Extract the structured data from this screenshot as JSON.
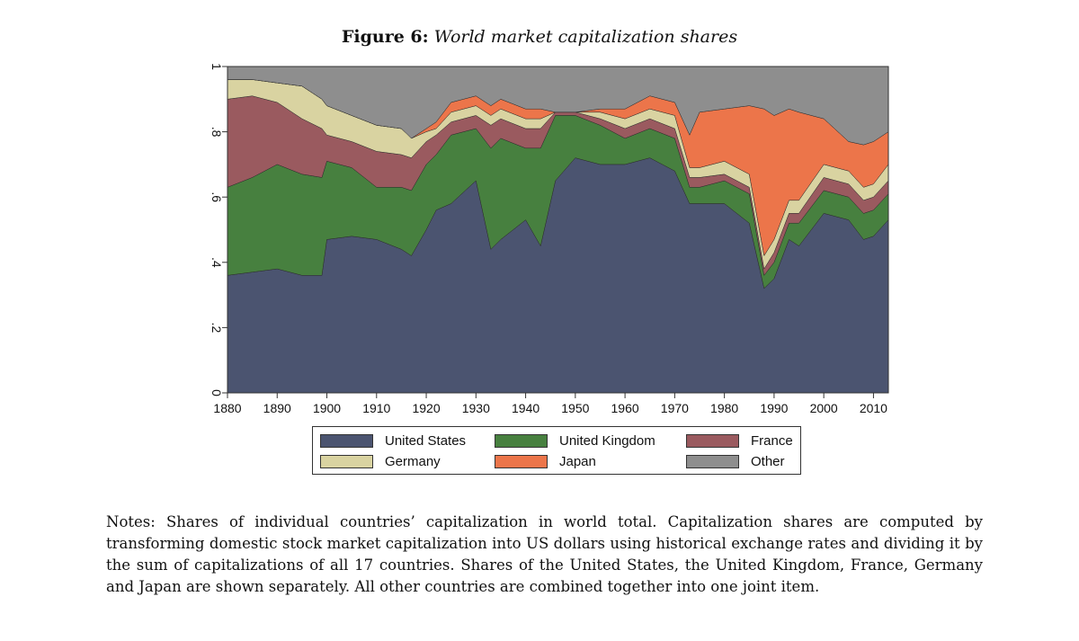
{
  "figure": {
    "label": "Figure 6:",
    "title": "World market capitalization shares"
  },
  "notes": "Notes: Shares of individual countries’ capitalization in world total. Capitalization shares are computed by transforming domestic stock market capitalization into US dollars using historical exchange rates and dividing it by the sum of capitalizations of all 17 countries. Shares of the United States, the United Kingdom, France, Germany and Japan are shown separately. All other countries are combined together into one joint item.",
  "chart_data": {
    "type": "area",
    "stacked": true,
    "xlim": [
      1880,
      2013
    ],
    "ylim": [
      0,
      1
    ],
    "x_ticks": [
      1880,
      1890,
      1900,
      1910,
      1920,
      1930,
      1940,
      1950,
      1960,
      1970,
      1980,
      1990,
      2000,
      2010
    ],
    "y_ticks": [
      {
        "value": 0,
        "label": "0"
      },
      {
        "value": 0.2,
        "label": ".2"
      },
      {
        "value": 0.4,
        "label": ".4"
      },
      {
        "value": 0.6,
        "label": ".6"
      },
      {
        "value": 0.8,
        "label": ".8"
      },
      {
        "value": 1,
        "label": "1"
      }
    ],
    "y_tick_orientation": "vertical",
    "grid": false,
    "legend_position": "bottom",
    "legend_columns": 3,
    "x": [
      1880,
      1885,
      1890,
      1895,
      1899,
      1900,
      1905,
      1910,
      1915,
      1917,
      1920,
      1922,
      1925,
      1930,
      1933,
      1935,
      1940,
      1943,
      1946,
      1950,
      1955,
      1960,
      1965,
      1970,
      1973,
      1975,
      1980,
      1985,
      1988,
      1990,
      1993,
      1995,
      2000,
      2005,
      2008,
      2010,
      2013
    ],
    "series": [
      {
        "name": "United States",
        "color": "#4b5470",
        "values": [
          0.36,
          0.37,
          0.38,
          0.36,
          0.36,
          0.47,
          0.48,
          0.47,
          0.44,
          0.42,
          0.5,
          0.56,
          0.58,
          0.65,
          0.44,
          0.47,
          0.53,
          0.45,
          0.65,
          0.72,
          0.7,
          0.7,
          0.72,
          0.68,
          0.58,
          0.58,
          0.58,
          0.52,
          0.32,
          0.35,
          0.47,
          0.45,
          0.55,
          0.53,
          0.47,
          0.48,
          0.53
        ]
      },
      {
        "name": "United Kingdom",
        "color": "#47803f",
        "values": [
          0.27,
          0.29,
          0.32,
          0.31,
          0.3,
          0.24,
          0.21,
          0.16,
          0.19,
          0.2,
          0.2,
          0.17,
          0.21,
          0.16,
          0.31,
          0.31,
          0.22,
          0.3,
          0.2,
          0.13,
          0.12,
          0.08,
          0.09,
          0.1,
          0.05,
          0.05,
          0.07,
          0.09,
          0.04,
          0.05,
          0.05,
          0.07,
          0.07,
          0.07,
          0.08,
          0.08,
          0.08
        ]
      },
      {
        "name": "France",
        "color": "#9a5a5f",
        "values": [
          0.27,
          0.25,
          0.19,
          0.17,
          0.15,
          0.08,
          0.08,
          0.11,
          0.1,
          0.1,
          0.07,
          0.06,
          0.04,
          0.04,
          0.07,
          0.06,
          0.06,
          0.06,
          0.01,
          0.01,
          0.02,
          0.03,
          0.03,
          0.03,
          0.03,
          0.03,
          0.02,
          0.02,
          0.02,
          0.03,
          0.03,
          0.03,
          0.04,
          0.04,
          0.04,
          0.04,
          0.04
        ]
      },
      {
        "name": "Germany",
        "color": "#d9d3a1",
        "values": [
          0.06,
          0.05,
          0.06,
          0.1,
          0.09,
          0.09,
          0.08,
          0.08,
          0.08,
          0.06,
          0.03,
          0.02,
          0.03,
          0.03,
          0.03,
          0.03,
          0.03,
          0.03,
          0.0,
          0.0,
          0.02,
          0.03,
          0.03,
          0.04,
          0.03,
          0.03,
          0.04,
          0.04,
          0.04,
          0.04,
          0.04,
          0.04,
          0.04,
          0.04,
          0.04,
          0.04,
          0.05
        ]
      },
      {
        "name": "Japan",
        "color": "#ec754a",
        "values": [
          0.0,
          0.0,
          0.0,
          0.0,
          0.0,
          0.0,
          0.0,
          0.0,
          0.0,
          0.0,
          0.01,
          0.02,
          0.03,
          0.03,
          0.03,
          0.03,
          0.03,
          0.03,
          0.0,
          0.0,
          0.01,
          0.03,
          0.04,
          0.04,
          0.1,
          0.17,
          0.16,
          0.21,
          0.45,
          0.38,
          0.28,
          0.27,
          0.14,
          0.09,
          0.13,
          0.13,
          0.1
        ]
      },
      {
        "name": "Other",
        "color": "#8e8e8e",
        "values": [
          0.04,
          0.04,
          0.05,
          0.06,
          0.1,
          0.12,
          0.15,
          0.18,
          0.19,
          0.22,
          0.19,
          0.17,
          0.11,
          0.09,
          0.12,
          0.1,
          0.13,
          0.13,
          0.14,
          0.14,
          0.13,
          0.13,
          0.09,
          0.11,
          0.21,
          0.14,
          0.13,
          0.12,
          0.13,
          0.15,
          0.13,
          0.14,
          0.16,
          0.23,
          0.24,
          0.23,
          0.2
        ]
      }
    ]
  }
}
